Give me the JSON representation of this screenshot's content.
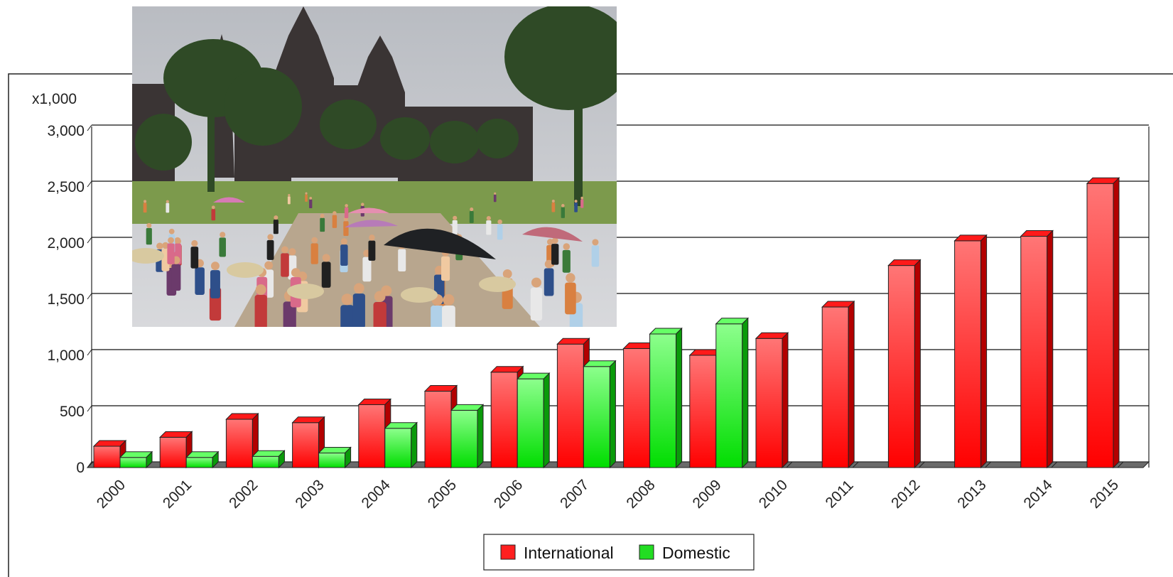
{
  "chart_data": {
    "type": "bar",
    "style": "3d",
    "unit_label": "x1,000",
    "categories": [
      "2000",
      "2001",
      "2002",
      "2003",
      "2004",
      "2005",
      "2006",
      "2007",
      "2008",
      "2009",
      "2010",
      "2011",
      "2012",
      "2013",
      "2014",
      "2015"
    ],
    "series": [
      {
        "name": "International",
        "color": "#ff1f1f",
        "values": [
          190,
          270,
          430,
          400,
          560,
          680,
          850,
          1100,
          1060,
          1000,
          1150,
          1430,
          1800,
          2020,
          2060,
          2530
        ]
      },
      {
        "name": "Domestic",
        "color": "#22dd22",
        "values": [
          90,
          90,
          100,
          130,
          350,
          510,
          790,
          900,
          1190,
          1280,
          null,
          null,
          null,
          null,
          null,
          null
        ]
      }
    ],
    "ylim": [
      0,
      3000
    ],
    "yticks": [
      0,
      500,
      1000,
      1500,
      2000,
      2500,
      3000
    ],
    "ytick_labels": [
      "0",
      "500",
      "1,000",
      "1,500",
      "2,000",
      "2,500",
      "3,000"
    ],
    "grid": true,
    "legend_position": "bottom-center"
  },
  "overlay_photo": {
    "subject": "crowd-of-tourists-at-angkor-wat",
    "colors": {
      "sky": "#c9ccd0",
      "temple": "#3a3434",
      "foliage": "#2f4a26",
      "lawn": "#7c9a4c",
      "path": "#b8a68e"
    }
  }
}
